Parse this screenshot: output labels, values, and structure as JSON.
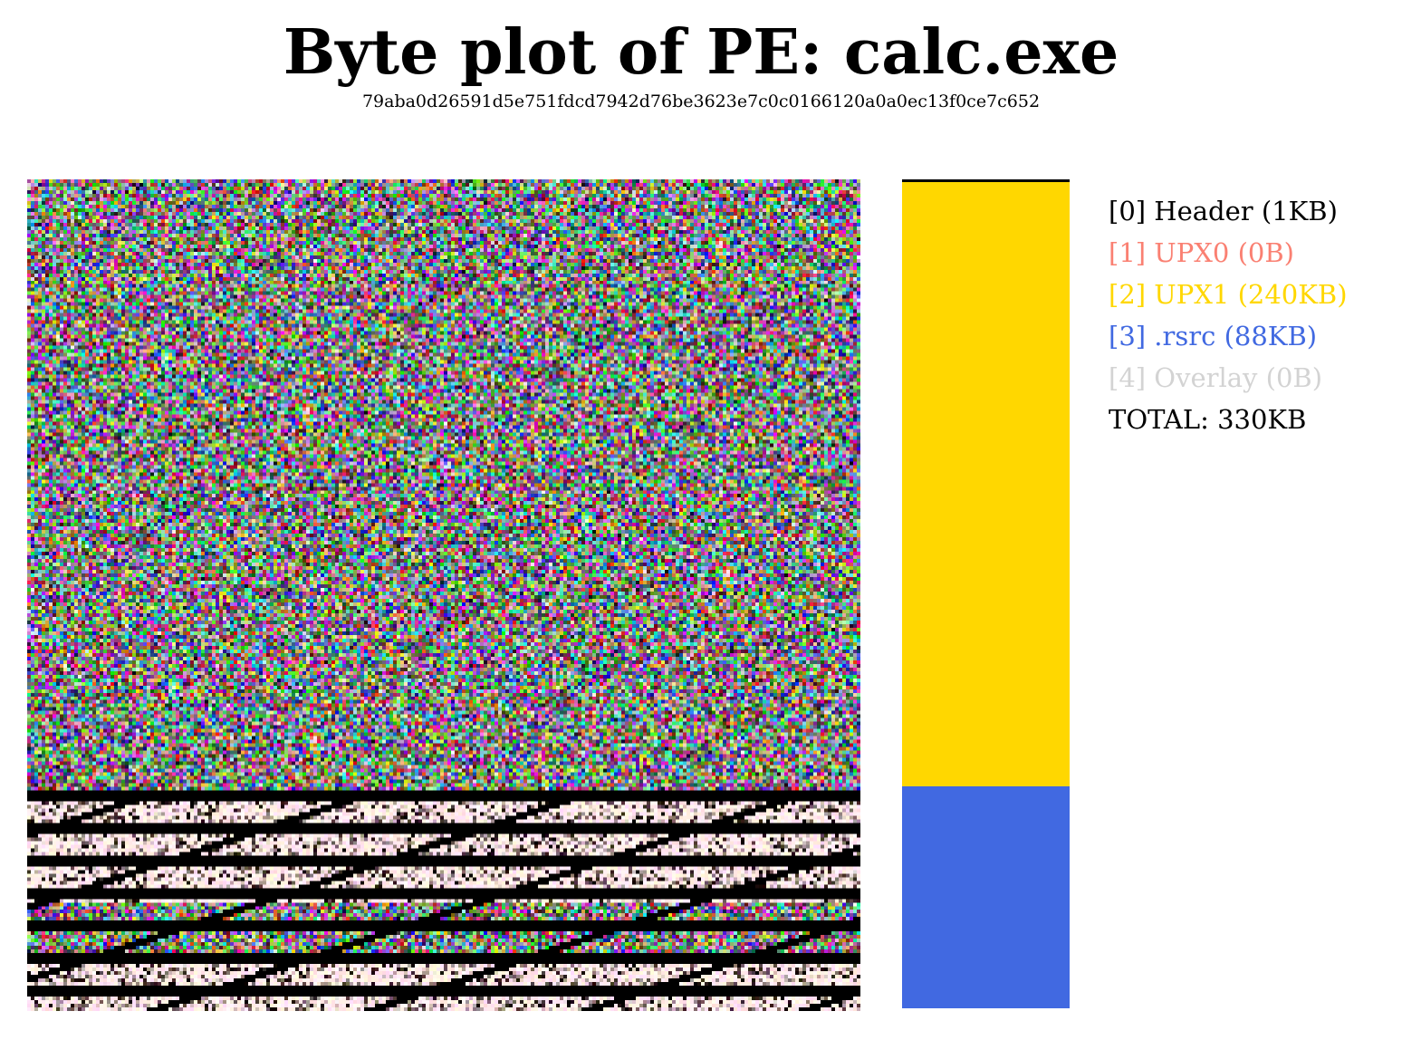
{
  "title": "Byte plot of PE: calc.exe",
  "hash": "79aba0d26591d5e751fdcd7942d76be3623e7c0c0166120a0a0ec13f0ce7c652",
  "sections": [
    {
      "label": "[0] Header (1KB)",
      "name": "Header",
      "size_kb": 1,
      "color": "#000000"
    },
    {
      "label": "[1] UPX0 (0B)",
      "name": "UPX0",
      "size_kb": 0,
      "color": "#fa8072"
    },
    {
      "label": "[2] UPX1 (240KB)",
      "name": "UPX1",
      "size_kb": 240,
      "color": "#ffd700"
    },
    {
      "label": "[3] .rsrc (88KB)",
      "name": ".rsrc",
      "size_kb": 88,
      "color": "#4169e1"
    },
    {
      "label": "[4] Overlay (0B)",
      "name": "Overlay",
      "size_kb": 0,
      "color": "#d3d3d3"
    }
  ],
  "total_label": "TOTAL: 330KB",
  "total_kb": 330
}
